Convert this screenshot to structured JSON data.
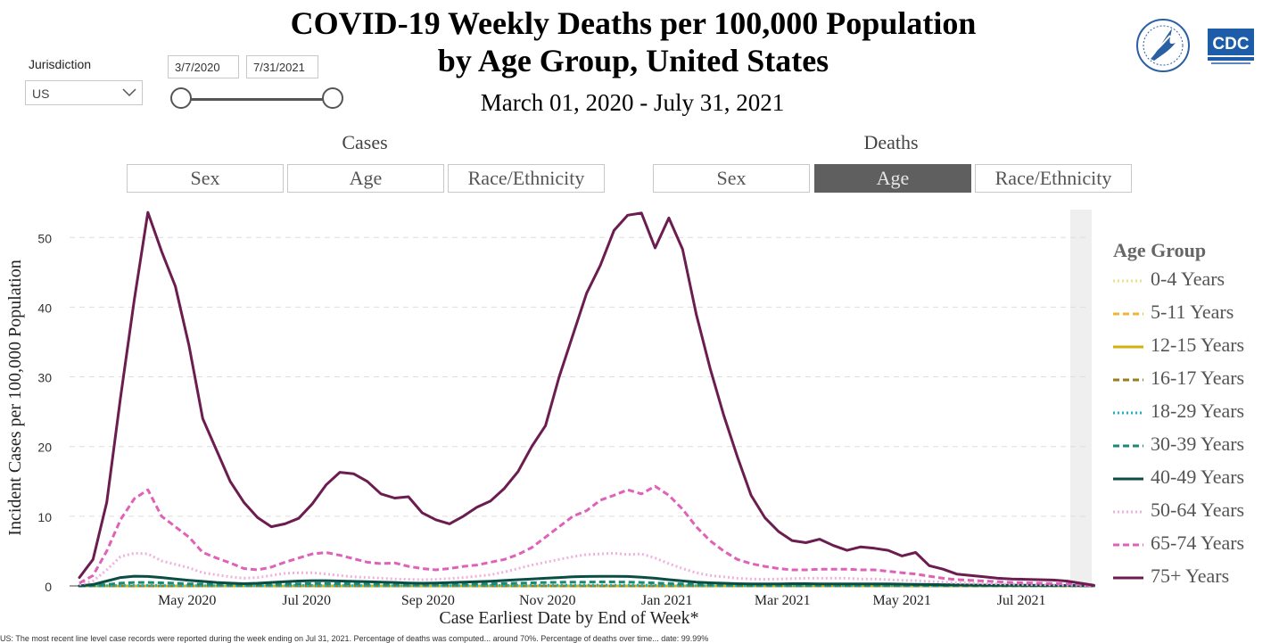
{
  "header": {
    "title_line1": "COVID-19 Weekly Deaths per 100,000 Population",
    "title_line2": "by Age Group, United States",
    "subtitle": "March 01, 2020 - July 31, 2021"
  },
  "filters": {
    "jurisdiction_label": "Jurisdiction",
    "jurisdiction_value": "US",
    "start_date": "3/7/2020",
    "end_date": "7/31/2021"
  },
  "logos": {
    "cdc_text": "CDC"
  },
  "sections": {
    "cases_label": "Cases",
    "deaths_label": "Deaths",
    "cases_tabs": [
      "Sex",
      "Age",
      "Race/Ethnicity"
    ],
    "deaths_tabs": [
      "Sex",
      "Age",
      "Race/Ethnicity"
    ],
    "active_tab": "Deaths/Age"
  },
  "legend": {
    "title": "Age Group"
  },
  "footnote": "US: The most recent line level case records were reported during the week ending on Jul 31, 2021. Percentage of deaths was computed... around 70%. Percentage of deaths over time... date: 99.99%",
  "chart_data": {
    "type": "line",
    "xlabel": "Case Earliest Date by End of Week*",
    "ylabel": "Incident Cases per 100,000 Population",
    "ylim": [
      0,
      54
    ],
    "yticks": [
      0,
      10,
      20,
      30,
      40,
      50
    ],
    "x_tick_labels": [
      "May 2020",
      "Jul 2020",
      "Sep 2020",
      "Nov 2020",
      "Jan 2021",
      "Mar 2021",
      "May 2021",
      "Jul 2021"
    ],
    "x_tick_dates": [
      "2020-05-01",
      "2020-07-01",
      "2020-09-01",
      "2020-11-01",
      "2021-01-01",
      "2021-03-01",
      "2021-05-01",
      "2021-07-01"
    ],
    "x_range": [
      "2020-03-02",
      "2021-08-05"
    ],
    "grid": "horizontal dashed",
    "legend_position": "right",
    "weeks_start": "2020-03-07",
    "weeks_interval_days": 7,
    "series": [
      {
        "name": "0-4 Years",
        "color": "#e8e08a",
        "dash": "2,3",
        "values": [
          0,
          0,
          0,
          0,
          0,
          0,
          0,
          0,
          0,
          0,
          0,
          0,
          0,
          0,
          0,
          0,
          0,
          0,
          0,
          0,
          0,
          0,
          0,
          0,
          0,
          0,
          0,
          0,
          0,
          0,
          0,
          0,
          0,
          0,
          0,
          0,
          0,
          0,
          0,
          0,
          0,
          0,
          0,
          0,
          0,
          0,
          0,
          0,
          0,
          0,
          0,
          0,
          0,
          0,
          0,
          0,
          0,
          0,
          0,
          0,
          0,
          0,
          0,
          0,
          0,
          0,
          0,
          0,
          0,
          0,
          0,
          0,
          0,
          0,
          0
        ]
      },
      {
        "name": "5-11 Years",
        "color": "#f2b632",
        "dash": "7,4",
        "values": [
          0,
          0,
          0,
          0,
          0,
          0,
          0,
          0,
          0,
          0,
          0,
          0,
          0,
          0,
          0,
          0,
          0,
          0,
          0,
          0,
          0,
          0,
          0,
          0,
          0,
          0,
          0,
          0,
          0,
          0,
          0,
          0,
          0,
          0,
          0,
          0,
          0,
          0,
          0,
          0,
          0,
          0,
          0,
          0,
          0,
          0,
          0,
          0,
          0,
          0,
          0,
          0,
          0,
          0,
          0,
          0,
          0,
          0,
          0,
          0,
          0,
          0,
          0,
          0,
          0,
          0,
          0,
          0,
          0,
          0,
          0,
          0,
          0,
          0,
          0
        ]
      },
      {
        "name": "12-15 Years",
        "color": "#d2b20d",
        "dash": "",
        "values": [
          0,
          0,
          0,
          0,
          0,
          0,
          0,
          0,
          0,
          0,
          0,
          0,
          0,
          0,
          0,
          0,
          0,
          0,
          0,
          0,
          0,
          0,
          0,
          0,
          0,
          0,
          0,
          0,
          0,
          0,
          0,
          0,
          0,
          0,
          0,
          0,
          0,
          0,
          0,
          0,
          0,
          0,
          0,
          0,
          0,
          0,
          0,
          0,
          0,
          0,
          0,
          0,
          0,
          0,
          0,
          0,
          0,
          0,
          0,
          0,
          0,
          0,
          0,
          0,
          0,
          0,
          0,
          0,
          0,
          0,
          0,
          0,
          0,
          0,
          0
        ]
      },
      {
        "name": "16-17 Years",
        "color": "#9a7d1f",
        "dash": "7,4",
        "values": [
          0,
          0,
          0,
          0,
          0,
          0,
          0,
          0,
          0,
          0,
          0,
          0,
          0,
          0,
          0,
          0,
          0,
          0,
          0,
          0,
          0,
          0,
          0,
          0,
          0,
          0,
          0,
          0,
          0,
          0,
          0,
          0,
          0,
          0,
          0,
          0,
          0,
          0,
          0,
          0,
          0,
          0,
          0,
          0,
          0,
          0,
          0,
          0,
          0,
          0,
          0,
          0,
          0,
          0,
          0,
          0,
          0,
          0,
          0,
          0,
          0,
          0,
          0,
          0,
          0,
          0,
          0,
          0,
          0,
          0,
          0,
          0,
          0,
          0,
          0
        ]
      },
      {
        "name": "18-29 Years",
        "color": "#17b6c6",
        "dash": "2,3",
        "values": [
          0,
          0.01,
          0.03,
          0.05,
          0.06,
          0.06,
          0.05,
          0.05,
          0.04,
          0.03,
          0.03,
          0.02,
          0.02,
          0.03,
          0.04,
          0.05,
          0.06,
          0.06,
          0.06,
          0.05,
          0.05,
          0.04,
          0.04,
          0.04,
          0.03,
          0.03,
          0.04,
          0.04,
          0.05,
          0.05,
          0.06,
          0.07,
          0.08,
          0.09,
          0.1,
          0.1,
          0.11,
          0.11,
          0.11,
          0.11,
          0.11,
          0.1,
          0.08,
          0.06,
          0.05,
          0.04,
          0.03,
          0.03,
          0.03,
          0.03,
          0.03,
          0.03,
          0.03,
          0.03,
          0.03,
          0.03,
          0.03,
          0.03,
          0.03,
          0.02,
          0.02,
          0.02,
          0.02,
          0.02,
          0.02,
          0.02,
          0.02,
          0.02,
          0.02,
          0.02,
          0.02,
          0.02,
          0.02,
          0.02,
          0
        ]
      },
      {
        "name": "30-39 Years",
        "color": "#1a8a77",
        "dash": "7,4",
        "values": [
          0,
          0.05,
          0.2,
          0.4,
          0.5,
          0.5,
          0.45,
          0.4,
          0.3,
          0.25,
          0.2,
          0.15,
          0.12,
          0.15,
          0.2,
          0.25,
          0.3,
          0.35,
          0.35,
          0.32,
          0.3,
          0.27,
          0.25,
          0.23,
          0.2,
          0.18,
          0.2,
          0.22,
          0.25,
          0.27,
          0.3,
          0.35,
          0.4,
          0.45,
          0.5,
          0.52,
          0.55,
          0.55,
          0.57,
          0.57,
          0.55,
          0.5,
          0.42,
          0.35,
          0.28,
          0.22,
          0.18,
          0.15,
          0.13,
          0.12,
          0.12,
          0.12,
          0.12,
          0.12,
          0.12,
          0.12,
          0.12,
          0.12,
          0.12,
          0.1,
          0.1,
          0.09,
          0.08,
          0.07,
          0.06,
          0.05,
          0.05,
          0.04,
          0.04,
          0.04,
          0.03,
          0.03,
          0.03,
          0.02,
          0
        ]
      },
      {
        "name": "40-49 Years",
        "color": "#0b4d45",
        "dash": "",
        "values": [
          0,
          0.2,
          0.7,
          1.2,
          1.4,
          1.35,
          1.2,
          1.0,
          0.8,
          0.65,
          0.5,
          0.4,
          0.32,
          0.38,
          0.5,
          0.62,
          0.7,
          0.75,
          0.75,
          0.7,
          0.65,
          0.6,
          0.55,
          0.5,
          0.42,
          0.38,
          0.42,
          0.48,
          0.55,
          0.6,
          0.68,
          0.78,
          0.9,
          1.0,
          1.1,
          1.2,
          1.3,
          1.35,
          1.38,
          1.38,
          1.35,
          1.25,
          1.1,
          0.9,
          0.72,
          0.55,
          0.45,
          0.38,
          0.32,
          0.3,
          0.3,
          0.3,
          0.32,
          0.32,
          0.3,
          0.3,
          0.3,
          0.3,
          0.3,
          0.28,
          0.25,
          0.22,
          0.2,
          0.18,
          0.15,
          0.13,
          0.12,
          0.1,
          0.1,
          0.09,
          0.08,
          0.07,
          0.06,
          0.05,
          0
        ]
      },
      {
        "name": "50-64 Years",
        "color": "#f0b2dc",
        "dash": "2,3",
        "values": [
          0.2,
          0.7,
          2.3,
          4.2,
          4.7,
          4.6,
          3.6,
          3.1,
          2.6,
          1.9,
          1.6,
          1.3,
          1.1,
          1.2,
          1.5,
          1.8,
          1.9,
          1.9,
          1.7,
          1.5,
          1.3,
          1.2,
          1.1,
          1.0,
          0.95,
          0.9,
          0.95,
          1.05,
          1.2,
          1.4,
          1.6,
          2.0,
          2.5,
          3.0,
          3.4,
          3.8,
          4.2,
          4.5,
          4.6,
          4.7,
          4.5,
          4.6,
          4.0,
          3.2,
          2.5,
          1.9,
          1.5,
          1.3,
          1.1,
          1.0,
          0.95,
          1.0,
          1.05,
          1.1,
          1.1,
          1.1,
          1.1,
          1.0,
          1.0,
          0.9,
          0.8,
          0.75,
          0.65,
          0.55,
          0.45,
          0.4,
          0.35,
          0.3,
          0.25,
          0.2,
          0.18,
          0.15,
          0.12,
          0.1,
          0
        ]
      },
      {
        "name": "65-74 Years",
        "color": "#e061b8",
        "dash": "7,4",
        "values": [
          0.4,
          1.5,
          5.0,
          9.5,
          12.5,
          13.8,
          10.0,
          8.5,
          7.0,
          4.8,
          4.0,
          3.3,
          2.5,
          2.3,
          2.7,
          3.4,
          4.0,
          4.6,
          4.8,
          4.4,
          3.9,
          3.4,
          3.2,
          3.3,
          2.8,
          2.5,
          2.3,
          2.5,
          2.8,
          3.0,
          3.4,
          3.8,
          4.5,
          5.5,
          7.0,
          8.5,
          10.0,
          10.8,
          12.3,
          13.0,
          13.8,
          13.2,
          14.3,
          13.0,
          11.0,
          8.5,
          6.5,
          5.0,
          3.8,
          3.2,
          2.8,
          2.5,
          2.3,
          2.3,
          2.4,
          2.4,
          2.4,
          2.3,
          2.3,
          2.1,
          1.9,
          1.7,
          1.4,
          1.1,
          0.9,
          0.8,
          0.7,
          0.6,
          0.5,
          0.45,
          0.4,
          0.35,
          0.3,
          0.2,
          0
        ]
      },
      {
        "name": "75+ Years",
        "color": "#6b1d4f",
        "dash": "",
        "values": [
          1.2,
          3.8,
          12.0,
          27.0,
          41.0,
          53.6,
          48.0,
          43.0,
          34.5,
          24.0,
          19.5,
          15.0,
          12.0,
          9.8,
          8.5,
          8.9,
          9.7,
          11.8,
          14.5,
          16.3,
          16.1,
          15.0,
          13.2,
          12.6,
          12.8,
          10.5,
          9.5,
          8.9,
          10.0,
          11.3,
          12.2,
          14.0,
          16.4,
          20.0,
          23.0,
          30.0,
          36.0,
          42.0,
          46.0,
          51.0,
          53.2,
          53.5,
          48.5,
          52.8,
          48.3,
          39.0,
          31.3,
          24.5,
          18.5,
          13.0,
          9.8,
          7.8,
          6.5,
          6.2,
          6.7,
          5.8,
          5.1,
          5.6,
          5.4,
          5.1,
          4.3,
          4.8,
          2.9,
          2.4,
          1.7,
          1.5,
          1.3,
          1.1,
          1.0,
          0.95,
          0.9,
          0.85,
          0.7,
          0.4,
          0.1
        ]
      }
    ]
  }
}
